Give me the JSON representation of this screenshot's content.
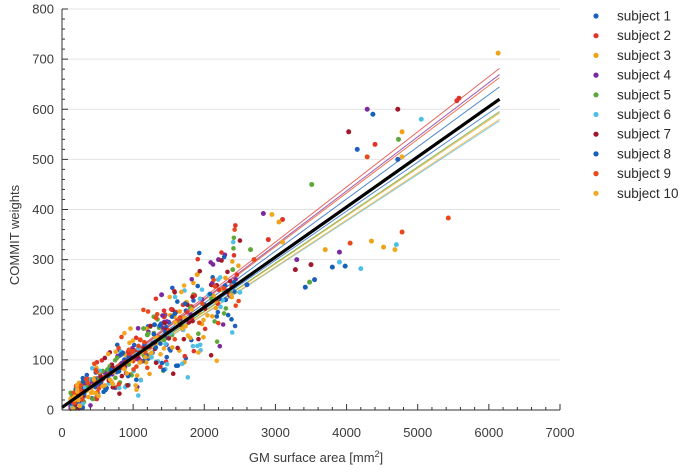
{
  "chart_data": {
    "type": "scatter",
    "title": "",
    "xlabel": "GM surface area [mm",
    "xlabel_sup": "2",
    "xlabel_end": "]",
    "ylabel": "COMMIT weights",
    "xlim": [
      0,
      7000
    ],
    "ylim": [
      0,
      800
    ],
    "xticks": [
      "0",
      "1000",
      "2000",
      "3000",
      "4000",
      "5000",
      "6000",
      "7000"
    ],
    "yticks": [
      "0",
      "100",
      "200",
      "300",
      "400",
      "500",
      "600",
      "700",
      "800"
    ],
    "grid": "horizontal",
    "legend_position": "outside-right",
    "colors": [
      "#1f5fc4",
      "#e0342a",
      "#f0a215",
      "#7a2a9e",
      "#5ea83a",
      "#4fbfe5",
      "#a3172a",
      "#1560b8",
      "#e8481a",
      "#f2a820"
    ],
    "series": [
      {
        "name": "subject 1",
        "fit": {
          "slope": 0.0979,
          "intercept": 5
        },
        "points": [
          [
            4720,
            500
          ],
          [
            1500,
            175
          ],
          [
            2300,
            220
          ],
          [
            3550,
            260
          ],
          [
            900,
            95
          ],
          [
            4150,
            520
          ],
          [
            2600,
            250
          ]
        ]
      },
      {
        "name": "subject 2",
        "fit": {
          "slope": 0.11,
          "intercept": 5
        },
        "points": [
          [
            5550,
            617
          ],
          [
            4400,
            530
          ],
          [
            5580,
            622
          ],
          [
            2900,
            340
          ],
          [
            1600,
            195
          ],
          [
            3100,
            380
          ],
          [
            1000,
            120
          ]
        ]
      },
      {
        "name": "subject 3",
        "fit": {
          "slope": 0.0955,
          "intercept": 5
        },
        "points": [
          [
            6130,
            712
          ],
          [
            4780,
            555
          ],
          [
            4520,
            325
          ],
          [
            4350,
            337
          ],
          [
            3700,
            320
          ],
          [
            1900,
            270
          ],
          [
            3050,
            375
          ]
        ]
      },
      {
        "name": "subject 4",
        "fit": {
          "slope": 0.108,
          "intercept": 5
        },
        "points": [
          [
            4290,
            600
          ],
          [
            2830,
            392
          ],
          [
            3900,
            315
          ],
          [
            1400,
            230
          ],
          [
            2200,
            300
          ],
          [
            600,
            75
          ],
          [
            3300,
            300
          ]
        ]
      },
      {
        "name": "subject 5",
        "fit": {
          "slope": 0.096,
          "intercept": 5
        },
        "points": [
          [
            3510,
            450
          ],
          [
            4730,
            540
          ],
          [
            2650,
            320
          ],
          [
            3480,
            255
          ],
          [
            1200,
            150
          ],
          [
            1850,
            230
          ],
          [
            2400,
            280
          ]
        ]
      },
      {
        "name": "subject 6",
        "fit": {
          "slope": 0.093,
          "intercept": 5
        },
        "points": [
          [
            5050,
            580
          ],
          [
            4700,
            330
          ],
          [
            3900,
            295
          ],
          [
            4200,
            282
          ],
          [
            1700,
            160
          ],
          [
            2500,
            235
          ],
          [
            800,
            80
          ]
        ]
      },
      {
        "name": "subject 7",
        "fit": {
          "slope": 0.1,
          "intercept": 5
        },
        "points": [
          [
            4030,
            555
          ],
          [
            4720,
            600
          ],
          [
            3280,
            280
          ],
          [
            3500,
            290
          ],
          [
            1550,
            200
          ],
          [
            2100,
            250
          ],
          [
            700,
            90
          ]
        ]
      },
      {
        "name": "subject 8",
        "fit": {
          "slope": 0.104,
          "intercept": 5
        },
        "points": [
          [
            4370,
            590
          ],
          [
            3800,
            285
          ],
          [
            3420,
            245
          ],
          [
            3980,
            287
          ],
          [
            1300,
            170
          ],
          [
            2000,
            210
          ],
          [
            500,
            60
          ]
        ]
      },
      {
        "name": "subject 9",
        "fit": {
          "slope": 0.107,
          "intercept": 5
        },
        "points": [
          [
            5430,
            383
          ],
          [
            4050,
            333
          ],
          [
            4290,
            505
          ],
          [
            4780,
            355
          ],
          [
            1450,
            190
          ],
          [
            2700,
            300
          ],
          [
            1100,
            140
          ]
        ]
      },
      {
        "name": "subject 10",
        "fit": {
          "slope": 0.0935,
          "intercept": 5
        },
        "points": [
          [
            4780,
            505
          ],
          [
            3100,
            335
          ],
          [
            2950,
            390
          ],
          [
            4680,
            320
          ],
          [
            1750,
            215
          ],
          [
            2250,
            240
          ],
          [
            900,
            110
          ]
        ]
      }
    ],
    "overall_fit": {
      "slope": 0.1,
      "intercept": 5,
      "x_range": [
        0,
        6150
      ]
    }
  }
}
